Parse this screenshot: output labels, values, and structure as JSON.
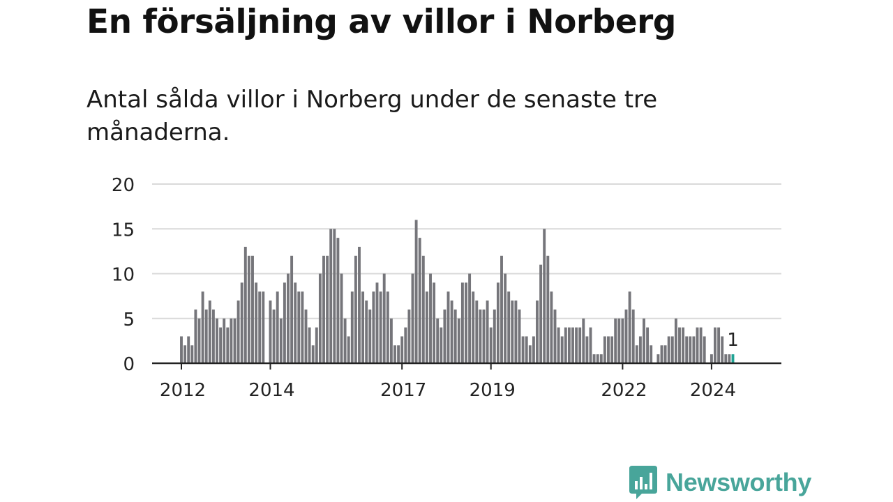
{
  "header": {
    "title": "En försäljning av villor i Norberg",
    "subtitle": "Antal sålda villor i Norberg under de senaste tre månaderna."
  },
  "brand": {
    "name": "Newsworthy",
    "icon": "newsworthy-chart-bubble-icon",
    "color": "#48a59a"
  },
  "chart_data": {
    "type": "bar",
    "title": "",
    "xlabel": "",
    "ylabel": "",
    "ylim": [
      0,
      20
    ],
    "yticks": [
      0,
      5,
      10,
      15,
      20
    ],
    "xticks": [
      {
        "label": "2012",
        "index": 0
      },
      {
        "label": "2014",
        "index": 25
      },
      {
        "label": "2017",
        "index": 62
      },
      {
        "label": "2019",
        "index": 87
      },
      {
        "label": "2022",
        "index": 124
      },
      {
        "label": "2024",
        "index": 149
      }
    ],
    "grid": true,
    "bar_color": "#75757a",
    "highlight_color": "#1fa394",
    "highlight_last": true,
    "last_value_label": "1",
    "values": [
      3,
      2,
      3,
      2,
      6,
      5,
      8,
      6,
      7,
      6,
      5,
      4,
      5,
      4,
      5,
      5,
      7,
      9,
      13,
      12,
      12,
      9,
      8,
      8,
      0,
      7,
      6,
      8,
      5,
      9,
      10,
      12,
      9,
      8,
      8,
      6,
      4,
      2,
      4,
      10,
      12,
      12,
      15,
      15,
      14,
      10,
      5,
      3,
      8,
      12,
      13,
      8,
      7,
      6,
      8,
      9,
      8,
      10,
      8,
      5,
      2,
      2,
      3,
      4,
      6,
      10,
      16,
      14,
      12,
      8,
      10,
      9,
      5,
      4,
      6,
      8,
      7,
      6,
      5,
      9,
      9,
      10,
      8,
      7,
      6,
      6,
      7,
      4,
      6,
      9,
      12,
      10,
      8,
      7,
      7,
      6,
      3,
      3,
      2,
      3,
      7,
      11,
      15,
      12,
      8,
      6,
      4,
      3,
      4,
      4,
      4,
      4,
      4,
      5,
      3,
      4,
      1,
      1,
      1,
      3,
      3,
      3,
      5,
      5,
      5,
      6,
      8,
      6,
      2,
      3,
      5,
      4,
      2,
      0,
      1,
      2,
      2,
      3,
      3,
      5,
      4,
      4,
      3,
      3,
      3,
      4,
      4,
      3,
      0,
      1,
      4,
      4,
      3,
      1,
      1,
      1
    ]
  }
}
